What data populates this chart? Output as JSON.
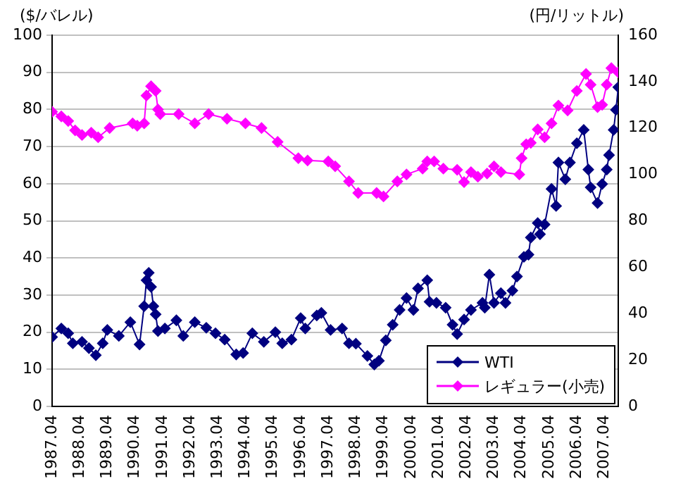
{
  "chart_data": {
    "type": "line",
    "ylabel": "($/バレル)",
    "y2label": "(円/リットル)",
    "xlim": [
      "1987-04",
      "2007-10"
    ],
    "xticks": [
      {
        "value": "1987-04",
        "label": "1987.04"
      },
      {
        "value": "1988-04",
        "label": "1988.04"
      },
      {
        "value": "1989-04",
        "label": "1989.04"
      },
      {
        "value": "1990-04",
        "label": "1990.04"
      },
      {
        "value": "1991-04",
        "label": "1991.04"
      },
      {
        "value": "1992-04",
        "label": "1992.04"
      },
      {
        "value": "1993-04",
        "label": "1993.04"
      },
      {
        "value": "1994-04",
        "label": "1994.04"
      },
      {
        "value": "1995-04",
        "label": "1995.04"
      },
      {
        "value": "1996-04",
        "label": "1996.04"
      },
      {
        "value": "1997-04",
        "label": "1997.04"
      },
      {
        "value": "1998-04",
        "label": "1998.04"
      },
      {
        "value": "1999-04",
        "label": "1999.04"
      },
      {
        "value": "2000-04",
        "label": "2000.04"
      },
      {
        "value": "2001-04",
        "label": "2001.04"
      },
      {
        "value": "2002-04",
        "label": "2002.04"
      },
      {
        "value": "2003-04",
        "label": "2003.04"
      },
      {
        "value": "2004-04",
        "label": "2004.04"
      },
      {
        "value": "2005-04",
        "label": "2005.04"
      },
      {
        "value": "2006-04",
        "label": "2006.04"
      },
      {
        "value": "2007-04",
        "label": "2007.04"
      }
    ],
    "ylim": [
      0,
      100
    ],
    "yticks": [
      0,
      10,
      20,
      30,
      40,
      50,
      60,
      70,
      80,
      90,
      100
    ],
    "y2lim": [
      0,
      160
    ],
    "y2ticks": [
      0,
      20,
      40,
      60,
      80,
      100,
      120,
      140,
      160
    ],
    "grid": "y",
    "legend": "bottom right",
    "marker": "diamond",
    "line_style": "solid",
    "series": [
      {
        "name": "WTI",
        "color": "#000080",
        "x": [
          "1987-04",
          "1987-08",
          "1987-11",
          "1988-01",
          "1988-05",
          "1988-08",
          "1988-11",
          "1989-02",
          "1989-04",
          "1989-09",
          "1990-02",
          "1990-06",
          "1990-08",
          "1990-09",
          "1990-10",
          "1990-11",
          "1990-12",
          "1991-01",
          "1991-02",
          "1991-05",
          "1991-10",
          "1992-01",
          "1992-06",
          "1992-11",
          "1993-03",
          "1993-07",
          "1993-12",
          "1994-03",
          "1994-07",
          "1994-12",
          "1995-05",
          "1995-08",
          "1995-12",
          "1996-04",
          "1996-06",
          "1996-11",
          "1997-01",
          "1997-05",
          "1997-10",
          "1998-01",
          "1998-04",
          "1998-09",
          "1998-12",
          "1999-02",
          "1999-05",
          "1999-08",
          "1999-11",
          "2000-02",
          "2000-05",
          "2000-07",
          "2000-11",
          "2000-12",
          "2001-03",
          "2001-07",
          "2001-10",
          "2001-12",
          "2002-03",
          "2002-06",
          "2002-11",
          "2002-12",
          "2003-02",
          "2003-04",
          "2003-07",
          "2003-09",
          "2003-12",
          "2004-02",
          "2004-05",
          "2004-07",
          "2004-08",
          "2004-11",
          "2004-12",
          "2005-02",
          "2005-05",
          "2005-07",
          "2005-08",
          "2005-11",
          "2006-01",
          "2006-04",
          "2006-07",
          "2006-09",
          "2006-10",
          "2007-01",
          "2007-03",
          "2007-05",
          "2007-06",
          "2007-08",
          "2007-09",
          "2007-10"
        ],
        "values": [
          18.7,
          21,
          19.7,
          17,
          17.4,
          15.7,
          13.8,
          17,
          20.6,
          19,
          22.7,
          16.7,
          27,
          34,
          36,
          32.2,
          27,
          24.8,
          20.3,
          21,
          23.2,
          19,
          22.7,
          21.2,
          19.7,
          18,
          14,
          14.4,
          19.7,
          17.4,
          20,
          17,
          18,
          23.8,
          21,
          24.5,
          25.2,
          20.6,
          21,
          17,
          16.9,
          13.6,
          11.3,
          12.3,
          17.8,
          22,
          26,
          29.2,
          26,
          31.8,
          34,
          28.2,
          27.9,
          26.6,
          22,
          19.5,
          23.4,
          26,
          27.9,
          26.6,
          35.5,
          27.9,
          30.5,
          27.9,
          31.2,
          35,
          40.3,
          40.9,
          45.5,
          49.4,
          46.4,
          49,
          58.6,
          54,
          65.7,
          61.2,
          65.7,
          70.9,
          74.5,
          63.8,
          59,
          54.8,
          59.9,
          63.8,
          67.7,
          74.5,
          79.9,
          86
        ]
      },
      {
        "name": "レギュラー(小売)",
        "color": "#ff00ff",
        "axis": "y2",
        "x": [
          "1987-04",
          "1987-08",
          "1987-11",
          "1988-02",
          "1988-05",
          "1988-09",
          "1988-12",
          "1989-05",
          "1990-03",
          "1990-05",
          "1990-08",
          "1990-09",
          "1990-11",
          "1991-01",
          "1991-02",
          "1991-03",
          "1991-11",
          "1992-06",
          "1992-12",
          "1993-08",
          "1994-04",
          "1994-11",
          "1995-06",
          "1996-03",
          "1996-07",
          "1997-04",
          "1997-07",
          "1998-01",
          "1998-05",
          "1999-01",
          "1999-04",
          "1999-10",
          "2000-02",
          "2000-09",
          "2000-11",
          "2001-02",
          "2001-06",
          "2001-12",
          "2002-03",
          "2002-06",
          "2002-09",
          "2003-01",
          "2003-04",
          "2003-07",
          "2004-03",
          "2004-04",
          "2004-06",
          "2004-08",
          "2004-11",
          "2005-02",
          "2005-05",
          "2005-08",
          "2005-12",
          "2006-04",
          "2006-08",
          "2006-10",
          "2007-01",
          "2007-03",
          "2007-05",
          "2007-07",
          "2007-10"
        ],
        "values": [
          127,
          125,
          123,
          119,
          117,
          118,
          116,
          120,
          122,
          121,
          122,
          134,
          138,
          136,
          128,
          126,
          126,
          122,
          126,
          124,
          122,
          120,
          114,
          107,
          106,
          105.6,
          103.5,
          97,
          92,
          92,
          90.5,
          97,
          100,
          102.5,
          105.6,
          105.6,
          102.5,
          102,
          96.7,
          101,
          99,
          100.4,
          103.5,
          101,
          100,
          107,
          113,
          113.6,
          119.4,
          116,
          122,
          129.7,
          127.6,
          136,
          143.3,
          138.7,
          129,
          130,
          138.7,
          145.8,
          144
        ]
      }
    ]
  }
}
